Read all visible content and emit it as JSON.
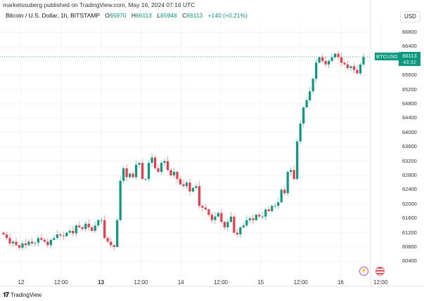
{
  "header": {
    "published": "marketssuberg published on TradingView.com, May 16, 2024 07:16 UTC",
    "symbol": "Bitcoin / U.S. Dollar, 1h, BITSTAMP",
    "o_label": "O",
    "o": "65970",
    "h_label": "H",
    "h": "66113",
    "l_label": "L",
    "l": "65948",
    "c_label": "C",
    "c": "66113",
    "change": "+140 (+0.21%)"
  },
  "currency_button": "USD",
  "last_price": {
    "ticker": "BTCUSD",
    "price": "66113",
    "countdown": "43:32"
  },
  "footer": {
    "brand": "TradingView",
    "logo": "17"
  },
  "colors": {
    "up": "#089981",
    "down": "#f23645",
    "grid": "#f0f3fa"
  },
  "events": [
    {
      "icon": "lightning-event-icon"
    },
    {
      "icon": "us-flag-event-icon"
    }
  ],
  "chart_data": {
    "type": "candlestick",
    "title": "Bitcoin / U.S. Dollar, 1h, BITSTAMP",
    "y_ticks": [
      "66800",
      "66400",
      "66000",
      "65600",
      "65200",
      "64800",
      "64400",
      "64000",
      "63600",
      "63200",
      "62800",
      "62400",
      "62000",
      "61600",
      "61200",
      "60800",
      "60400"
    ],
    "ylim": [
      60150,
      66900
    ],
    "x_ticks": [
      {
        "label": "12",
        "bold": false
      },
      {
        "label": "12:00",
        "bold": false
      },
      {
        "label": "13",
        "bold": true
      },
      {
        "label": "12:00",
        "bold": false
      },
      {
        "label": "14",
        "bold": false
      },
      {
        "label": "12:00",
        "bold": false
      },
      {
        "label": "15",
        "bold": false
      },
      {
        "label": "12:00",
        "bold": false
      },
      {
        "label": "16",
        "bold": false
      },
      {
        "label": "12:00",
        "bold": false
      }
    ],
    "first_open": 61200,
    "closes": [
      61150,
      61050,
      60900,
      60950,
      60850,
      60780,
      60900,
      60850,
      60950,
      60900,
      60920,
      61050,
      61000,
      60950,
      60850,
      61000,
      61050,
      61150,
      61120,
      61100,
      61200,
      61250,
      61180,
      61400,
      61350,
      61300,
      61450,
      61350,
      61250,
      61400,
      61550,
      61550,
      61050,
      60950,
      60850,
      60800,
      61550,
      62650,
      63000,
      62750,
      62850,
      62750,
      63100,
      63150,
      62700,
      62700,
      63150,
      63300,
      63000,
      62900,
      63150,
      63200,
      62950,
      62800,
      62900,
      62700,
      62550,
      62500,
      62600,
      62350,
      62450,
      62500,
      61950,
      61900,
      61850,
      61700,
      61550,
      61650,
      61750,
      61500,
      61350,
      61500,
      61650,
      61200,
      61150,
      61350,
      61400,
      61550,
      61600,
      61550,
      61700,
      61650,
      61650,
      61850,
      61800,
      61950,
      61950,
      62050,
      62400,
      62300,
      62900,
      62950,
      62700,
      63750,
      64250,
      64700,
      64900,
      65150,
      65500,
      65950,
      66100,
      66000,
      65900,
      66000,
      66100,
      66200,
      66100,
      65950,
      65900,
      65800,
      65850,
      65750,
      65650,
      65900,
      66113
    ]
  }
}
